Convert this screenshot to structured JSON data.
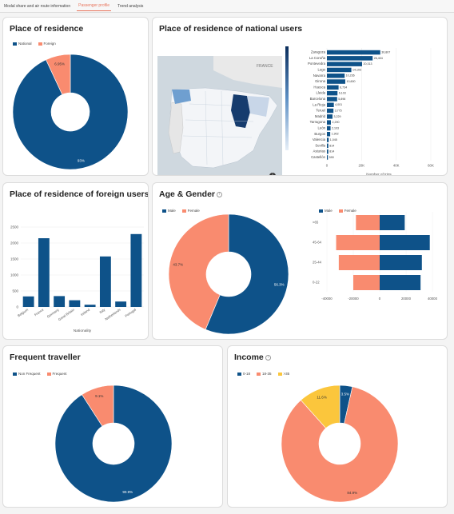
{
  "tabs": [
    {
      "label": "Modal share and air route information"
    },
    {
      "label": "Passenger profile"
    },
    {
      "label": "Trend analysis"
    }
  ],
  "colors": {
    "blue": "#0e5289",
    "salmon": "#f98b6f",
    "yellow": "#fbc63c"
  },
  "residence": {
    "title": "Place of residence",
    "chart_data": {
      "type": "pie",
      "labels": [
        "National",
        "Foreign"
      ],
      "values": [
        93.0,
        6.95
      ],
      "value_labels": [
        "93%",
        "6.95%"
      ]
    }
  },
  "national": {
    "title": "Place of residence of national users",
    "map_labels": {
      "country": "FRANCE"
    },
    "chart_data": {
      "type": "bar",
      "orientation": "horizontal",
      "categories": [
        "Zaragoza",
        "La Coruña",
        "Pontevedra",
        "Lugo",
        "Navarra",
        "Girona",
        "Huesca",
        "Lleida",
        "Barcelona",
        "La Rioja",
        "Teruel",
        "Madrid",
        "Tarragona",
        "León",
        "Burgos",
        "Valencia",
        "Sevilla",
        "Asturias",
        "Castellón"
      ],
      "values": [
        30807,
        26404,
        20313,
        14103,
        10236,
        10600,
        6734,
        6103,
        5898,
        4001,
        3775,
        3229,
        2290,
        2103,
        1902,
        1045,
        814,
        814,
        590
      ],
      "value_labels": [
        "30,807",
        "26,404",
        "20,313",
        "14,103",
        "10,236",
        "10,600",
        "6,734",
        "6,103",
        "5,898",
        "4,001",
        "3,775",
        "3,229",
        "2,290",
        "2,103",
        "1,902",
        "1,045",
        "814",
        "814",
        "590"
      ],
      "xticks": [
        "0",
        "20K",
        "40K",
        "60K"
      ],
      "xlim": [
        0,
        60000
      ],
      "xlabel": "Number of trips"
    }
  },
  "foreign": {
    "title": "Place of residence of foreign users",
    "chart_data": {
      "type": "bar",
      "categories": [
        "Belgium",
        "France",
        "Germany",
        "Great Britain",
        "Ireland",
        "Italy",
        "Netherlands",
        "Portugal"
      ],
      "values": [
        330,
        2150,
        340,
        210,
        70,
        1580,
        170,
        2280
      ],
      "yticks": [
        "0",
        "500",
        "1000",
        "1500",
        "2000",
        "2500"
      ],
      "ylim": [
        0,
        2500
      ],
      "xlabel": "Nationality"
    }
  },
  "age_gender": {
    "title": "Age & Gender",
    "pie": {
      "type": "pie",
      "labels": [
        "Male",
        "Female"
      ],
      "values": [
        56.3,
        43.7
      ],
      "value_labels": [
        "56.3%",
        "43.7%"
      ]
    },
    "pyramid": {
      "type": "bar",
      "orientation": "horizontal",
      "labels": [
        "Male",
        "Female"
      ],
      "categories": [
        ">65",
        "45-64",
        "25-44",
        "0-22"
      ],
      "male": [
        19000,
        38000,
        32000,
        31000
      ],
      "female": [
        18000,
        33000,
        31000,
        20000
      ],
      "xticks": [
        "-40000",
        "-20000",
        "0",
        "20000",
        "40000"
      ],
      "xlim": [
        -40000,
        40000
      ]
    }
  },
  "frequent": {
    "title": "Frequent traveller",
    "chart_data": {
      "type": "pie",
      "labels": [
        "Non Frequent",
        "Frequent"
      ],
      "values": [
        90.9,
        9.1
      ],
      "value_labels": [
        "90.9%",
        "9.1%"
      ]
    }
  },
  "income": {
    "title": "Income",
    "chart_data": {
      "type": "pie",
      "labels": [
        "0-18",
        "18-35",
        ">35"
      ],
      "values": [
        3.5,
        84.9,
        11.6
      ],
      "value_labels": [
        "3.5%",
        "84.9%",
        "11.6%"
      ]
    }
  }
}
